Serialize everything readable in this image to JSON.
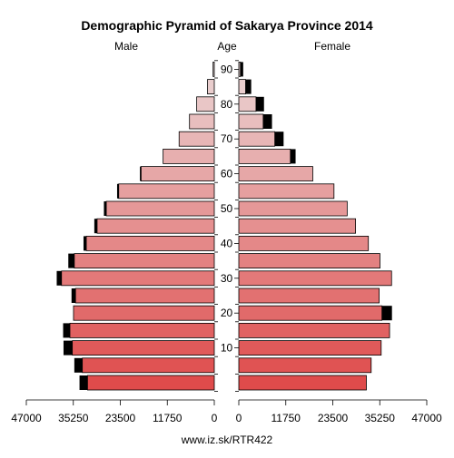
{
  "chart_data": {
    "type": "bar",
    "title": "Demographic Pyramid of Sakarya Province 2014",
    "left_label": "Male",
    "center_label": "Age",
    "right_label": "Female",
    "footer": "www.iz.sk/RTR422",
    "age_ticks": [
      "10",
      "20",
      "30",
      "40",
      "50",
      "60",
      "70",
      "80",
      "90"
    ],
    "x_ticks_left": [
      "47000",
      "35250",
      "23500",
      "11750",
      "0"
    ],
    "x_ticks_right": [
      "0",
      "11750",
      "23500",
      "35250",
      "47000"
    ],
    "xlim": [
      0,
      47000
    ],
    "age_groups": [
      "0-4",
      "5-9",
      "10-14",
      "15-19",
      "20-24",
      "25-29",
      "30-34",
      "35-39",
      "40-44",
      "45-49",
      "50-54",
      "55-59",
      "60-64",
      "65-69",
      "70-74",
      "75-79",
      "80-84",
      "85-89",
      "90+"
    ],
    "series": [
      {
        "name": "Male",
        "values": [
          31700,
          33000,
          35500,
          36100,
          35200,
          34700,
          38200,
          35000,
          32000,
          29300,
          27000,
          23900,
          18300,
          12800,
          8800,
          6200,
          4400,
          1700,
          300
        ]
      },
      {
        "name": "Male excess",
        "values": [
          2000,
          2000,
          2200,
          1700,
          0,
          1000,
          1200,
          1500,
          700,
          700,
          600,
          400,
          300,
          0,
          0,
          0,
          0,
          0,
          0
        ]
      },
      {
        "name": "Female",
        "values": [
          31900,
          33100,
          35600,
          37700,
          35800,
          35100,
          38200,
          35300,
          32400,
          29200,
          27100,
          23800,
          18500,
          12900,
          9000,
          6100,
          4300,
          1700,
          400
        ]
      },
      {
        "name": "Female excess",
        "values": [
          0,
          0,
          0,
          0,
          2500,
          0,
          0,
          0,
          0,
          0,
          0,
          0,
          0,
          1300,
          2200,
          2200,
          2000,
          1400,
          700
        ]
      }
    ],
    "colors": {
      "young": "#df4b4b",
      "old": "#ead5d5",
      "excess": "#000000",
      "outline": "#000000"
    }
  }
}
